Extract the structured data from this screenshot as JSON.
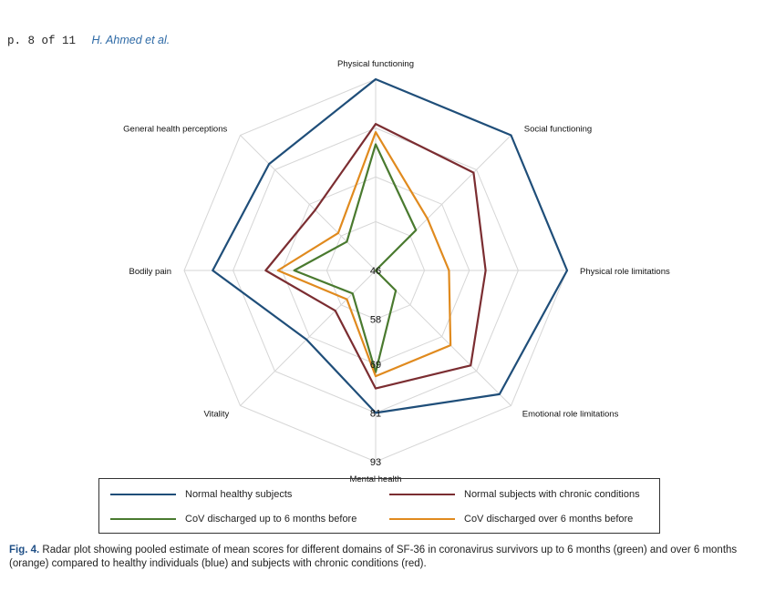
{
  "header": {
    "page": "p. 8 of 11",
    "author": "H. Ahmed et al."
  },
  "chart_data": {
    "type": "radar",
    "axes": [
      "Physical functioning",
      "Social functioning",
      "Physical role limitations",
      "Emotional role limitations",
      "Mental health",
      "Vitality",
      "Bodily pain",
      "General health perceptions"
    ],
    "range": [
      46,
      93
    ],
    "ticks": [
      46,
      58,
      69,
      81,
      93
    ],
    "series": [
      {
        "name": "Normal healthy subjects",
        "color": "#1f4e79",
        "values": [
          93,
          93,
          93,
          89,
          81,
          70,
          86,
          83
        ]
      },
      {
        "name": "Normal subjects with chronic conditions",
        "color": "#7b2d31",
        "values": [
          82,
          80,
          73,
          79,
          75,
          60,
          73,
          67
        ]
      },
      {
        "name": "CoV discharged up to 6 months before",
        "color": "#4a7a2f",
        "values": [
          77,
          60,
          46,
          53,
          71,
          54,
          66,
          56
        ]
      },
      {
        "name": "CoV discharged over 6 months before",
        "color": "#e08a1e",
        "values": [
          80,
          64,
          64,
          72,
          72,
          56,
          70,
          59
        ]
      }
    ]
  },
  "caption": {
    "label": "Fig. 4.",
    "text": " Radar plot showing pooled estimate of mean scores for different domains of SF-36 in coronavirus survivors up to 6 months (green) and over 6 months (orange) compared to healthy individuals (blue) and subjects with chronic conditions (red)."
  }
}
